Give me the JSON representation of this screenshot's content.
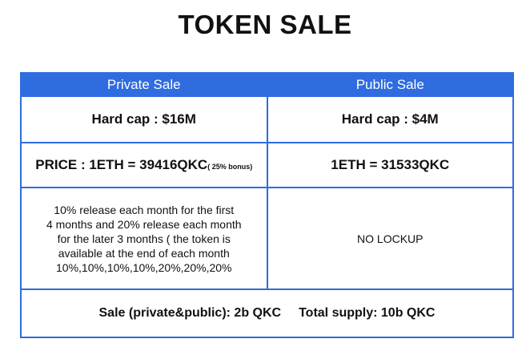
{
  "title": "TOKEN SALE",
  "table": {
    "headers": {
      "private": "Private Sale",
      "public": "Public Sale"
    },
    "hard_cap": {
      "private": "Hard cap : $16M",
      "public": "Hard cap : $4M"
    },
    "price": {
      "private": "PRICE : 1ETH = 39416QKC",
      "private_bonus": "( 25% bonus)",
      "public": "1ETH = 31533QKC"
    },
    "lockup": {
      "private_lines": [
        "10% release each month for the first",
        "4 months and 20% release each month",
        "for the later 3 months ( the token is",
        "available at the end of each month",
        "10%,10%,10%,10%,20%,20%,20%"
      ],
      "public": "NO LOCKUP"
    },
    "totals": {
      "sale": "Sale (private&public): 2b QKC",
      "supply": "Total supply: 10b QKC"
    }
  },
  "colors": {
    "accent": "#2f6ce0",
    "header_text": "#ffffff",
    "text": "#111111"
  }
}
